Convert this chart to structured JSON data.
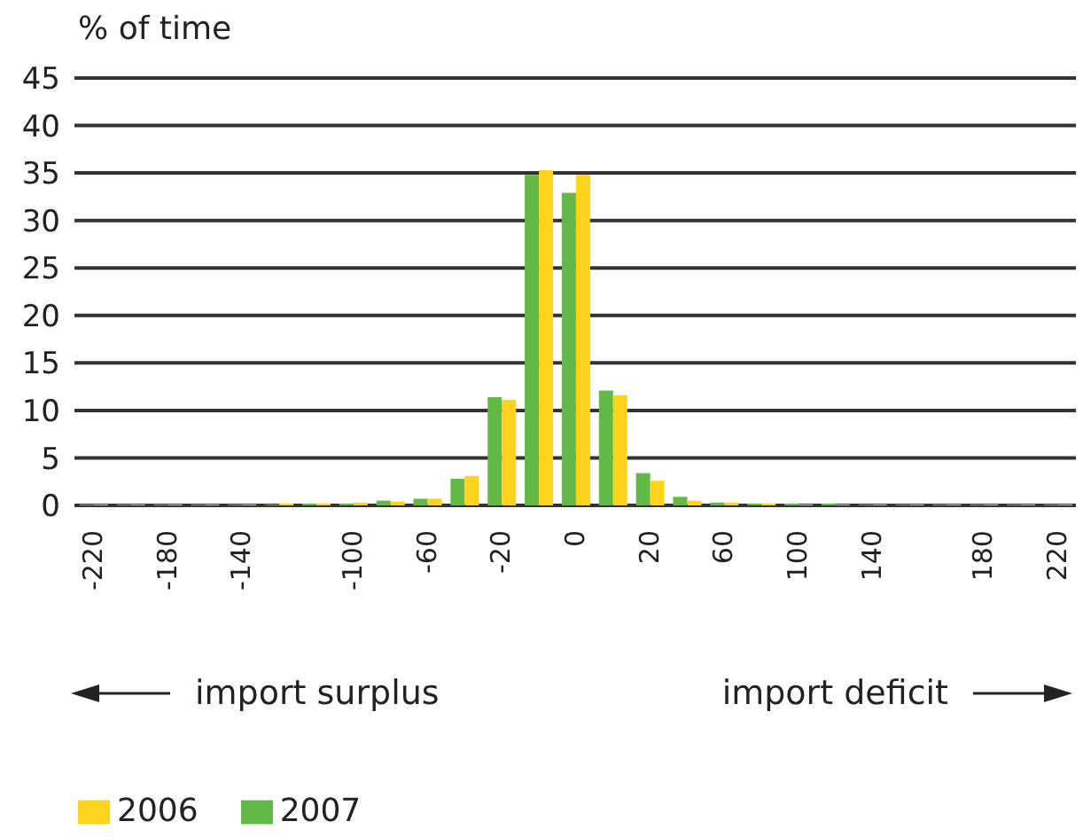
{
  "chart_data": {
    "type": "bar",
    "ylabel": "% of time",
    "categories": [
      "-220",
      null,
      "-180",
      null,
      "-140",
      null,
      null,
      "-100",
      null,
      "-60",
      null,
      "-20",
      null,
      "0",
      null,
      "20",
      null,
      "60",
      null,
      "100",
      null,
      "140",
      null,
      null,
      "180",
      null,
      "220"
    ],
    "series": [
      {
        "name": "2007",
        "color": "#62b946",
        "values": [
          0.1,
          0.1,
          0.1,
          0.1,
          0.1,
          0.1,
          0.2,
          0.2,
          0.5,
          0.7,
          2.8,
          11.4,
          34.8,
          32.9,
          12.1,
          3.4,
          0.9,
          0.3,
          0.2,
          0.2,
          0.2,
          0.1,
          0.1,
          0.1,
          0.1,
          0.1,
          0.1
        ]
      },
      {
        "name": "2006",
        "color": "#fdd31d",
        "values": [
          0.1,
          0.1,
          0.1,
          0.1,
          0.1,
          0.2,
          0.2,
          0.3,
          0.4,
          0.7,
          3.1,
          11.1,
          35.3,
          34.8,
          11.6,
          2.6,
          0.5,
          0.3,
          0.2,
          0.1,
          0.1,
          0.1,
          0.1,
          0.1,
          0.1,
          0.1,
          0.1
        ]
      }
    ],
    "ylim": [
      0,
      45
    ],
    "yticks": [
      0,
      5,
      10,
      15,
      20,
      25,
      30,
      35,
      40,
      45
    ],
    "grid": "y",
    "legend": "bottom left",
    "annotations": [
      "import surplus",
      "import deficit"
    ]
  }
}
